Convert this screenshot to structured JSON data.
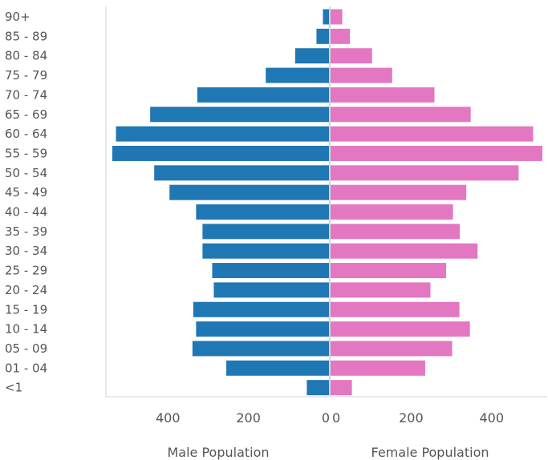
{
  "chart_data": {
    "type": "bar",
    "orientation": "horizontal",
    "categories": [
      "90+",
      "85 - 89",
      "80 - 84",
      "75 - 79",
      "70 - 74",
      "65 - 69",
      "60 - 64",
      "55 - 59",
      "50 - 54",
      "45 - 49",
      "40 - 44",
      "35 - 39",
      "30 - 34",
      "25 - 29",
      "20 - 24",
      "15 - 19",
      "10 - 14",
      "05 - 09",
      "01 - 04",
      "<1"
    ],
    "series": [
      {
        "name": "Male Population",
        "color": "#1f77b4",
        "values": [
          15,
          31,
          84,
          157,
          327,
          444,
          529,
          538,
          434,
          396,
          330,
          314,
          314,
          290,
          286,
          337,
          330,
          339,
          255,
          55
        ]
      },
      {
        "name": "Female Population",
        "color": "#e377c2",
        "values": [
          29,
          48,
          103,
          153,
          258,
          348,
          503,
          526,
          467,
          337,
          304,
          321,
          365,
          287,
          248,
          320,
          346,
          302,
          235,
          53
        ]
      }
    ],
    "male_axis": {
      "title": "Male Population",
      "ticks": [
        400,
        200,
        0
      ],
      "xlim": [
        0,
        540
      ]
    },
    "female_axis": {
      "title": "Female Population",
      "ticks": [
        0,
        200,
        400
      ],
      "xlim": [
        0,
        530
      ]
    },
    "grid": false,
    "legend": "none"
  }
}
